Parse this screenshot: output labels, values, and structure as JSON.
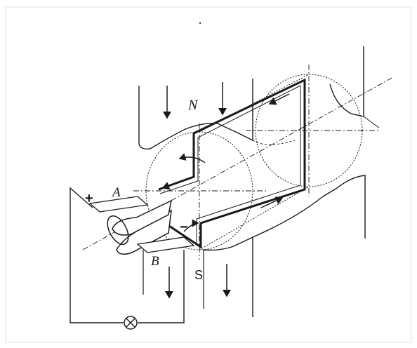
{
  "labels": {
    "north_pole": "N",
    "south_pole": "S",
    "brush_a": "A",
    "brush_b": "B",
    "plus_terminal": "+",
    "minus_terminal": "−"
  },
  "colors": {
    "ink": "#1a1a1a",
    "faint": "#555555",
    "background": "#ffffff"
  },
  "components": [
    "magnet-north-pole",
    "magnet-south-pole",
    "armature-cylinder",
    "coil-loop",
    "commutator",
    "brush-a",
    "brush-b",
    "external-circuit",
    "lamp"
  ]
}
